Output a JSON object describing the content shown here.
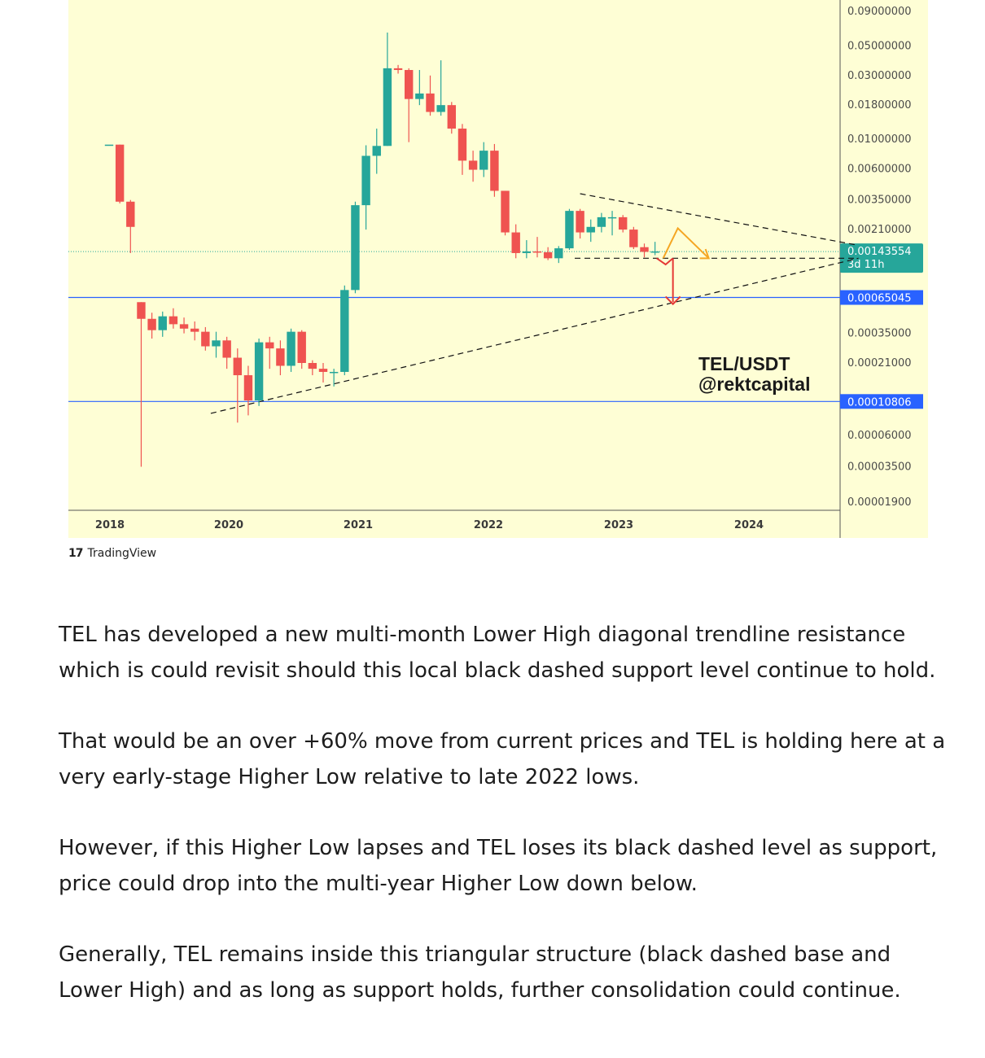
{
  "chart_data": {
    "type": "candlestick",
    "symbol_text": "TEL/USDT",
    "author_text": "@rektcapital",
    "y_scale": "log",
    "x_tick_labels": [
      "2018",
      "2020",
      "2021",
      "2022",
      "2023",
      "2024"
    ],
    "price_tick_labels": [
      "0.09000000",
      "0.05000000",
      "0.03000000",
      "0.01800000",
      "0.01000000",
      "0.00600000",
      "0.00350000",
      "0.00210000",
      "0.00035000",
      "0.00021000",
      "0.00006000",
      "0.00003500",
      "0.00001900"
    ],
    "current_price": {
      "value": "0.00143554",
      "countdown": "3d 11h",
      "color": "#26a69a"
    },
    "horizontal_levels": [
      {
        "value": "0.00065045",
        "color": "#2962ff"
      },
      {
        "value": "0.00010806",
        "color": "#2962ff"
      }
    ],
    "colors": {
      "up": "#26a69a",
      "down": "#ef5350",
      "background": "#fefed5",
      "arrow_up": "#f5a623",
      "arrow_down": "#e53935"
    },
    "candles": [
      {
        "o": 0.0091,
        "h": 0.0091,
        "l": 0.0091,
        "c": 0.0091
      },
      {
        "o": 0.0091,
        "h": 0.0091,
        "l": 0.0033,
        "c": 0.0034
      },
      {
        "o": 0.0034,
        "h": 0.0035,
        "l": 0.0014,
        "c": 0.0022
      },
      {
        "o": 0.0006,
        "h": 0.0006,
        "l": 3.5e-05,
        "c": 0.00045
      },
      {
        "o": 0.00045,
        "h": 0.0005,
        "l": 0.00032,
        "c": 0.00037
      },
      {
        "o": 0.00037,
        "h": 0.00051,
        "l": 0.00033,
        "c": 0.00047
      },
      {
        "o": 0.00047,
        "h": 0.00054,
        "l": 0.00038,
        "c": 0.00041
      },
      {
        "o": 0.00041,
        "h": 0.00046,
        "l": 0.00035,
        "c": 0.00038
      },
      {
        "o": 0.00038,
        "h": 0.00043,
        "l": 0.00031,
        "c": 0.00036
      },
      {
        "o": 0.00036,
        "h": 0.00039,
        "l": 0.00026,
        "c": 0.00028
      },
      {
        "o": 0.00028,
        "h": 0.00036,
        "l": 0.00023,
        "c": 0.00031
      },
      {
        "o": 0.00031,
        "h": 0.00033,
        "l": 0.00019,
        "c": 0.00023
      },
      {
        "o": 0.00023,
        "h": 0.00027,
        "l": 7.5e-05,
        "c": 0.00017
      },
      {
        "o": 0.00017,
        "h": 0.0002,
        "l": 8.5e-05,
        "c": 0.00011
      },
      {
        "o": 0.00011,
        "h": 0.00032,
        "l": 0.0001,
        "c": 0.0003
      },
      {
        "o": 0.0003,
        "h": 0.00033,
        "l": 0.00019,
        "c": 0.00027
      },
      {
        "o": 0.00027,
        "h": 0.00031,
        "l": 0.00017,
        "c": 0.0002
      },
      {
        "o": 0.0002,
        "h": 0.00038,
        "l": 0.00018,
        "c": 0.00036
      },
      {
        "o": 0.00036,
        "h": 0.00037,
        "l": 0.00019,
        "c": 0.00021
      },
      {
        "o": 0.00021,
        "h": 0.00022,
        "l": 0.00017,
        "c": 0.00019
      },
      {
        "o": 0.00019,
        "h": 0.00021,
        "l": 0.00015,
        "c": 0.00018
      },
      {
        "o": 0.00018,
        "h": 0.00019,
        "l": 0.00014,
        "c": 0.00018
      },
      {
        "o": 0.00018,
        "h": 0.0008,
        "l": 0.00017,
        "c": 0.00074
      },
      {
        "o": 0.00074,
        "h": 0.0034,
        "l": 0.0007,
        "c": 0.0032
      },
      {
        "o": 0.0032,
        "h": 0.009,
        "l": 0.0021,
        "c": 0.0075
      },
      {
        "o": 0.0075,
        "h": 0.012,
        "l": 0.0055,
        "c": 0.0089
      },
      {
        "o": 0.0089,
        "h": 0.063,
        "l": 0.0089,
        "c": 0.034
      },
      {
        "o": 0.034,
        "h": 0.036,
        "l": 0.031,
        "c": 0.033
      },
      {
        "o": 0.033,
        "h": 0.034,
        "l": 0.0095,
        "c": 0.02
      },
      {
        "o": 0.02,
        "h": 0.033,
        "l": 0.018,
        "c": 0.022
      },
      {
        "o": 0.022,
        "h": 0.03,
        "l": 0.015,
        "c": 0.016
      },
      {
        "o": 0.016,
        "h": 0.039,
        "l": 0.015,
        "c": 0.018
      },
      {
        "o": 0.018,
        "h": 0.019,
        "l": 0.011,
        "c": 0.012
      },
      {
        "o": 0.012,
        "h": 0.013,
        "l": 0.0054,
        "c": 0.0069
      },
      {
        "o": 0.0069,
        "h": 0.0082,
        "l": 0.0048,
        "c": 0.0059
      },
      {
        "o": 0.0059,
        "h": 0.0095,
        "l": 0.0052,
        "c": 0.0082
      },
      {
        "o": 0.0082,
        "h": 0.0092,
        "l": 0.0037,
        "c": 0.0041
      },
      {
        "o": 0.0041,
        "h": 0.0041,
        "l": 0.0019,
        "c": 0.002
      },
      {
        "o": 0.002,
        "h": 0.0023,
        "l": 0.00128,
        "c": 0.0014
      },
      {
        "o": 0.0014,
        "h": 0.00175,
        "l": 0.00128,
        "c": 0.00144
      },
      {
        "o": 0.00144,
        "h": 0.00185,
        "l": 0.0013,
        "c": 0.00142
      },
      {
        "o": 0.00142,
        "h": 0.00155,
        "l": 0.00124,
        "c": 0.00128
      },
      {
        "o": 0.00128,
        "h": 0.00158,
        "l": 0.00118,
        "c": 0.00152
      },
      {
        "o": 0.00152,
        "h": 0.003,
        "l": 0.00148,
        "c": 0.0029
      },
      {
        "o": 0.0029,
        "h": 0.003,
        "l": 0.0018,
        "c": 0.002
      },
      {
        "o": 0.002,
        "h": 0.0025,
        "l": 0.0017,
        "c": 0.0022
      },
      {
        "o": 0.0022,
        "h": 0.0028,
        "l": 0.002,
        "c": 0.0026
      },
      {
        "o": 0.0026,
        "h": 0.0029,
        "l": 0.0019,
        "c": 0.0026
      },
      {
        "o": 0.0026,
        "h": 0.0027,
        "l": 0.002,
        "c": 0.0021
      },
      {
        "o": 0.0021,
        "h": 0.0022,
        "l": 0.0015,
        "c": 0.00155
      },
      {
        "o": 0.00155,
        "h": 0.00165,
        "l": 0.0013,
        "c": 0.00143
      },
      {
        "o": 0.00143,
        "h": 0.0017,
        "l": 0.00135,
        "c": 0.00144
      }
    ]
  },
  "watermark": {
    "brand": "TradingView",
    "mark": "17"
  },
  "article": {
    "paragraphs": [
      "TEL has developed a new multi-month Lower High diagonal trendline resistance which is could revisit should this local black dashed support level continue to hold.",
      "That would be an over +60% move from current prices and TEL is holding here at a very early-stage Higher Low relative to late 2022 lows.",
      "However, if this Higher Low lapses and TEL loses its black dashed level as support, price could drop into the multi-year Higher Low down below.",
      "Generally, TEL remains inside this triangular structure (black dashed base and Lower High) and as long as support holds, further consolidation could continue."
    ]
  }
}
